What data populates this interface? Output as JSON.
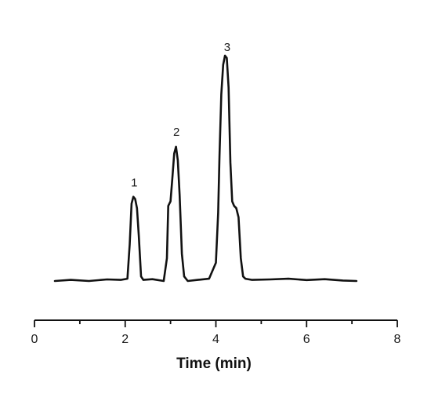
{
  "chart_data": {
    "type": "line",
    "title": "",
    "xlabel": "Time (min)",
    "ylabel": "",
    "xlim": [
      0,
      8
    ],
    "ylim": [
      0,
      1
    ],
    "x_ticks": [
      "0",
      "2",
      "4",
      "6",
      "8"
    ],
    "y_axis_visible": false,
    "grid": false,
    "line_color": "#111111",
    "peak_annotations": [
      {
        "label": "1",
        "x": 2.2,
        "y": 0.385
      },
      {
        "label": "2",
        "x": 3.13,
        "y": 0.607
      },
      {
        "label": "3",
        "x": 4.25,
        "y": 0.98
      }
    ],
    "series": [
      {
        "x": [
          0.45,
          0.8,
          1.2,
          1.6,
          1.9,
          2.05,
          2.1,
          2.14,
          2.18,
          2.22,
          2.26,
          2.3,
          2.35,
          2.4,
          2.6,
          2.85,
          2.92,
          2.95,
          3.0,
          3.04,
          3.08,
          3.12,
          3.16,
          3.2,
          3.25,
          3.3,
          3.38,
          3.6,
          3.85,
          4.0,
          4.05,
          4.08,
          4.12,
          4.16,
          4.2,
          4.24,
          4.28,
          4.32,
          4.36,
          4.4,
          4.45,
          4.5,
          4.55,
          4.6,
          4.65,
          4.8,
          5.2,
          5.6,
          6.0,
          6.4,
          6.8,
          7.1
        ],
        "y": [
          0.0,
          0.005,
          0.0,
          0.007,
          0.005,
          0.01,
          0.16,
          0.34,
          0.37,
          0.36,
          0.32,
          0.2,
          0.02,
          0.005,
          0.008,
          0.0,
          0.1,
          0.33,
          0.35,
          0.45,
          0.56,
          0.59,
          0.53,
          0.38,
          0.12,
          0.02,
          0.0,
          0.005,
          0.01,
          0.08,
          0.3,
          0.55,
          0.82,
          0.95,
          0.99,
          0.98,
          0.85,
          0.52,
          0.35,
          0.33,
          0.32,
          0.28,
          0.1,
          0.02,
          0.01,
          0.005,
          0.007,
          0.01,
          0.004,
          0.008,
          0.002,
          0.0
        ]
      }
    ]
  }
}
